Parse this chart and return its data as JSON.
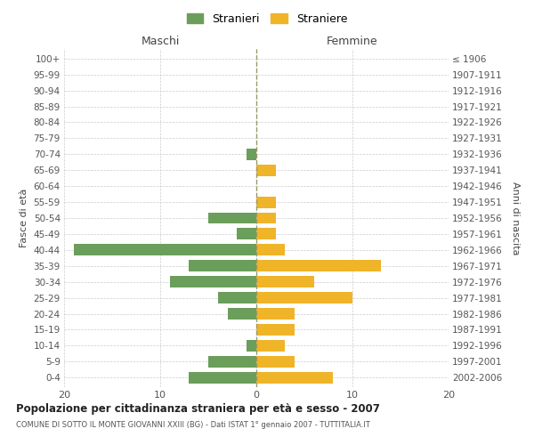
{
  "age_groups": [
    "100+",
    "95-99",
    "90-94",
    "85-89",
    "80-84",
    "75-79",
    "70-74",
    "65-69",
    "60-64",
    "55-59",
    "50-54",
    "45-49",
    "40-44",
    "35-39",
    "30-34",
    "25-29",
    "20-24",
    "15-19",
    "10-14",
    "5-9",
    "0-4"
  ],
  "birth_years": [
    "≤ 1906",
    "1907-1911",
    "1912-1916",
    "1917-1921",
    "1922-1926",
    "1927-1931",
    "1932-1936",
    "1937-1941",
    "1942-1946",
    "1947-1951",
    "1952-1956",
    "1957-1961",
    "1962-1966",
    "1967-1971",
    "1972-1976",
    "1977-1981",
    "1982-1986",
    "1987-1991",
    "1992-1996",
    "1997-2001",
    "2002-2006"
  ],
  "maschi": [
    0,
    0,
    0,
    0,
    0,
    0,
    1,
    0,
    0,
    0,
    5,
    2,
    19,
    7,
    9,
    4,
    3,
    0,
    1,
    5,
    7
  ],
  "femmine": [
    0,
    0,
    0,
    0,
    0,
    0,
    0,
    2,
    0,
    2,
    2,
    2,
    3,
    13,
    6,
    10,
    4,
    4,
    3,
    4,
    8
  ],
  "color_maschi": "#6a9e5a",
  "color_femmine": "#f0b429",
  "background_color": "#ffffff",
  "grid_color": "#cccccc",
  "dashed_line_color": "#999966",
  "title_main": "Popolazione per cittadinanza straniera per età e sesso - 2007",
  "title_sub": "COMUNE DI SOTTO IL MONTE GIOVANNI XXIII (BG) - Dati ISTAT 1° gennaio 2007 - TUTTITALIA.IT",
  "xlabel_left": "Maschi",
  "xlabel_right": "Femmine",
  "ylabel_left": "Fasce di età",
  "ylabel_right": "Anni di nascita",
  "legend_maschi": "Stranieri",
  "legend_femmine": "Straniere",
  "xlim": 20
}
